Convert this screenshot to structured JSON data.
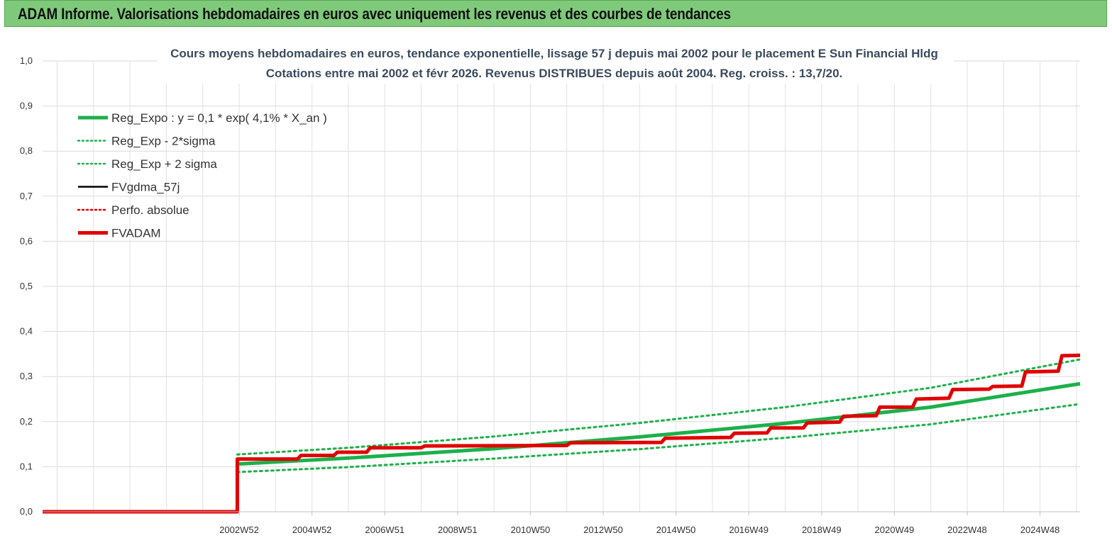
{
  "header": {
    "title": "ADAM Informe. Valorisations hebdomadaires en euros avec uniquement les revenus et des courbes de tendances"
  },
  "chart_data": {
    "type": "line",
    "title": "Cours moyens hebdomadaires en euros, tendance exponentielle, lissage 57 j depuis mai 2002 pour le placement E Sun Financial Hldg",
    "subtitle": "Cotations entre mai 2002 et févr 2026. Revenus DISTRIBUES depuis août 2004. Reg. croiss. : 13,7/20.",
    "xlabel": "",
    "ylabel": "",
    "ylim": [
      0,
      1
    ],
    "yticks": [
      "0,0",
      "0,1",
      "0,2",
      "0,3",
      "0,4",
      "0,5",
      "0,6",
      "0,7",
      "0,8",
      "0,9",
      "1,0"
    ],
    "xlim": [
      1997.6,
      2026.1
    ],
    "xticks": [
      {
        "label": "2002W52",
        "x": 2003.0
      },
      {
        "label": "2004W52",
        "x": 2005.0
      },
      {
        "label": "2006W51",
        "x": 2007.0
      },
      {
        "label": "2008W51",
        "x": 2009.0
      },
      {
        "label": "2010W50",
        "x": 2011.0
      },
      {
        "label": "2012W50",
        "x": 2013.0
      },
      {
        "label": "2014W50",
        "x": 2015.0
      },
      {
        "label": "2016W49",
        "x": 2017.0
      },
      {
        "label": "2018W49",
        "x": 2019.0
      },
      {
        "label": "2020W49",
        "x": 2021.0
      },
      {
        "label": "2022W48",
        "x": 2023.0
      },
      {
        "label": "2024W48",
        "x": 2025.0
      }
    ],
    "grid": true,
    "legend_position": "top-left",
    "series": [
      {
        "name": "Reg_Expo : y = 0,1 * exp( 4,1% *  X_an )",
        "color": "#1db04b",
        "style": "solid-thick",
        "points": [
          [
            2002.95,
            0.106
          ],
          [
            2006,
            0.119
          ],
          [
            2010,
            0.14
          ],
          [
            2014,
            0.166
          ],
          [
            2018,
            0.196
          ],
          [
            2022,
            0.232
          ],
          [
            2026.1,
            0.284
          ]
        ]
      },
      {
        "name": "Reg_Exp - 2*sigma",
        "color": "#1db04b",
        "style": "dotted",
        "points": [
          [
            2002.95,
            0.088
          ],
          [
            2006,
            0.099
          ],
          [
            2010,
            0.118
          ],
          [
            2014,
            0.139
          ],
          [
            2018,
            0.164
          ],
          [
            2022,
            0.194
          ],
          [
            2026.1,
            0.239
          ]
        ]
      },
      {
        "name": "Reg_Exp + 2 sigma",
        "color": "#1db04b",
        "style": "dotted",
        "points": [
          [
            2002.95,
            0.127
          ],
          [
            2006,
            0.142
          ],
          [
            2010,
            0.167
          ],
          [
            2014,
            0.197
          ],
          [
            2018,
            0.232
          ],
          [
            2022,
            0.275
          ],
          [
            2026.1,
            0.338
          ]
        ]
      },
      {
        "name": "FVgdma_57j",
        "color": "#000000",
        "style": "solid",
        "points": [
          [
            1997.6,
            0.0
          ],
          [
            2002.95,
            0.0
          ],
          [
            2002.95,
            0.117
          ],
          [
            2004.6,
            0.117
          ],
          [
            2004.7,
            0.125
          ],
          [
            2005.6,
            0.125
          ],
          [
            2005.7,
            0.132
          ],
          [
            2006.5,
            0.132
          ],
          [
            2006.6,
            0.142
          ],
          [
            2008.0,
            0.142
          ],
          [
            2008.1,
            0.146
          ],
          [
            2012.0,
            0.147
          ],
          [
            2012.1,
            0.153
          ],
          [
            2014.6,
            0.154
          ],
          [
            2014.7,
            0.163
          ],
          [
            2016.5,
            0.165
          ],
          [
            2016.6,
            0.174
          ],
          [
            2017.5,
            0.175
          ],
          [
            2017.6,
            0.186
          ],
          [
            2018.5,
            0.186
          ],
          [
            2018.6,
            0.197
          ],
          [
            2019.5,
            0.199
          ],
          [
            2019.6,
            0.212
          ],
          [
            2020.5,
            0.213
          ],
          [
            2020.6,
            0.232
          ],
          [
            2021.5,
            0.232
          ],
          [
            2021.6,
            0.25
          ],
          [
            2022.5,
            0.252
          ],
          [
            2022.6,
            0.271
          ],
          [
            2023.6,
            0.272
          ],
          [
            2023.7,
            0.278
          ],
          [
            2024.5,
            0.279
          ],
          [
            2024.6,
            0.31
          ],
          [
            2025.5,
            0.312
          ],
          [
            2025.6,
            0.346
          ],
          [
            2026.1,
            0.347
          ]
        ]
      },
      {
        "name": "Perfo. absolue",
        "color": "#e00000",
        "style": "dotted",
        "points": []
      },
      {
        "name": "FVADAM",
        "color": "#e00000",
        "style": "solid-thick",
        "points": [
          [
            1997.6,
            0.0
          ],
          [
            2002.95,
            0.0
          ],
          [
            2002.95,
            0.117
          ],
          [
            2004.6,
            0.117
          ],
          [
            2004.7,
            0.125
          ],
          [
            2005.6,
            0.125
          ],
          [
            2005.7,
            0.132
          ],
          [
            2006.5,
            0.132
          ],
          [
            2006.6,
            0.142
          ],
          [
            2008.0,
            0.142
          ],
          [
            2008.1,
            0.146
          ],
          [
            2012.0,
            0.147
          ],
          [
            2012.1,
            0.153
          ],
          [
            2014.6,
            0.154
          ],
          [
            2014.7,
            0.163
          ],
          [
            2016.5,
            0.165
          ],
          [
            2016.6,
            0.174
          ],
          [
            2017.5,
            0.175
          ],
          [
            2017.6,
            0.186
          ],
          [
            2018.5,
            0.186
          ],
          [
            2018.6,
            0.197
          ],
          [
            2019.5,
            0.199
          ],
          [
            2019.6,
            0.212
          ],
          [
            2020.5,
            0.213
          ],
          [
            2020.6,
            0.232
          ],
          [
            2021.5,
            0.232
          ],
          [
            2021.6,
            0.25
          ],
          [
            2022.5,
            0.252
          ],
          [
            2022.6,
            0.271
          ],
          [
            2023.6,
            0.272
          ],
          [
            2023.7,
            0.278
          ],
          [
            2024.5,
            0.279
          ],
          [
            2024.6,
            0.31
          ],
          [
            2025.5,
            0.312
          ],
          [
            2025.6,
            0.346
          ],
          [
            2026.1,
            0.347
          ]
        ]
      }
    ]
  }
}
